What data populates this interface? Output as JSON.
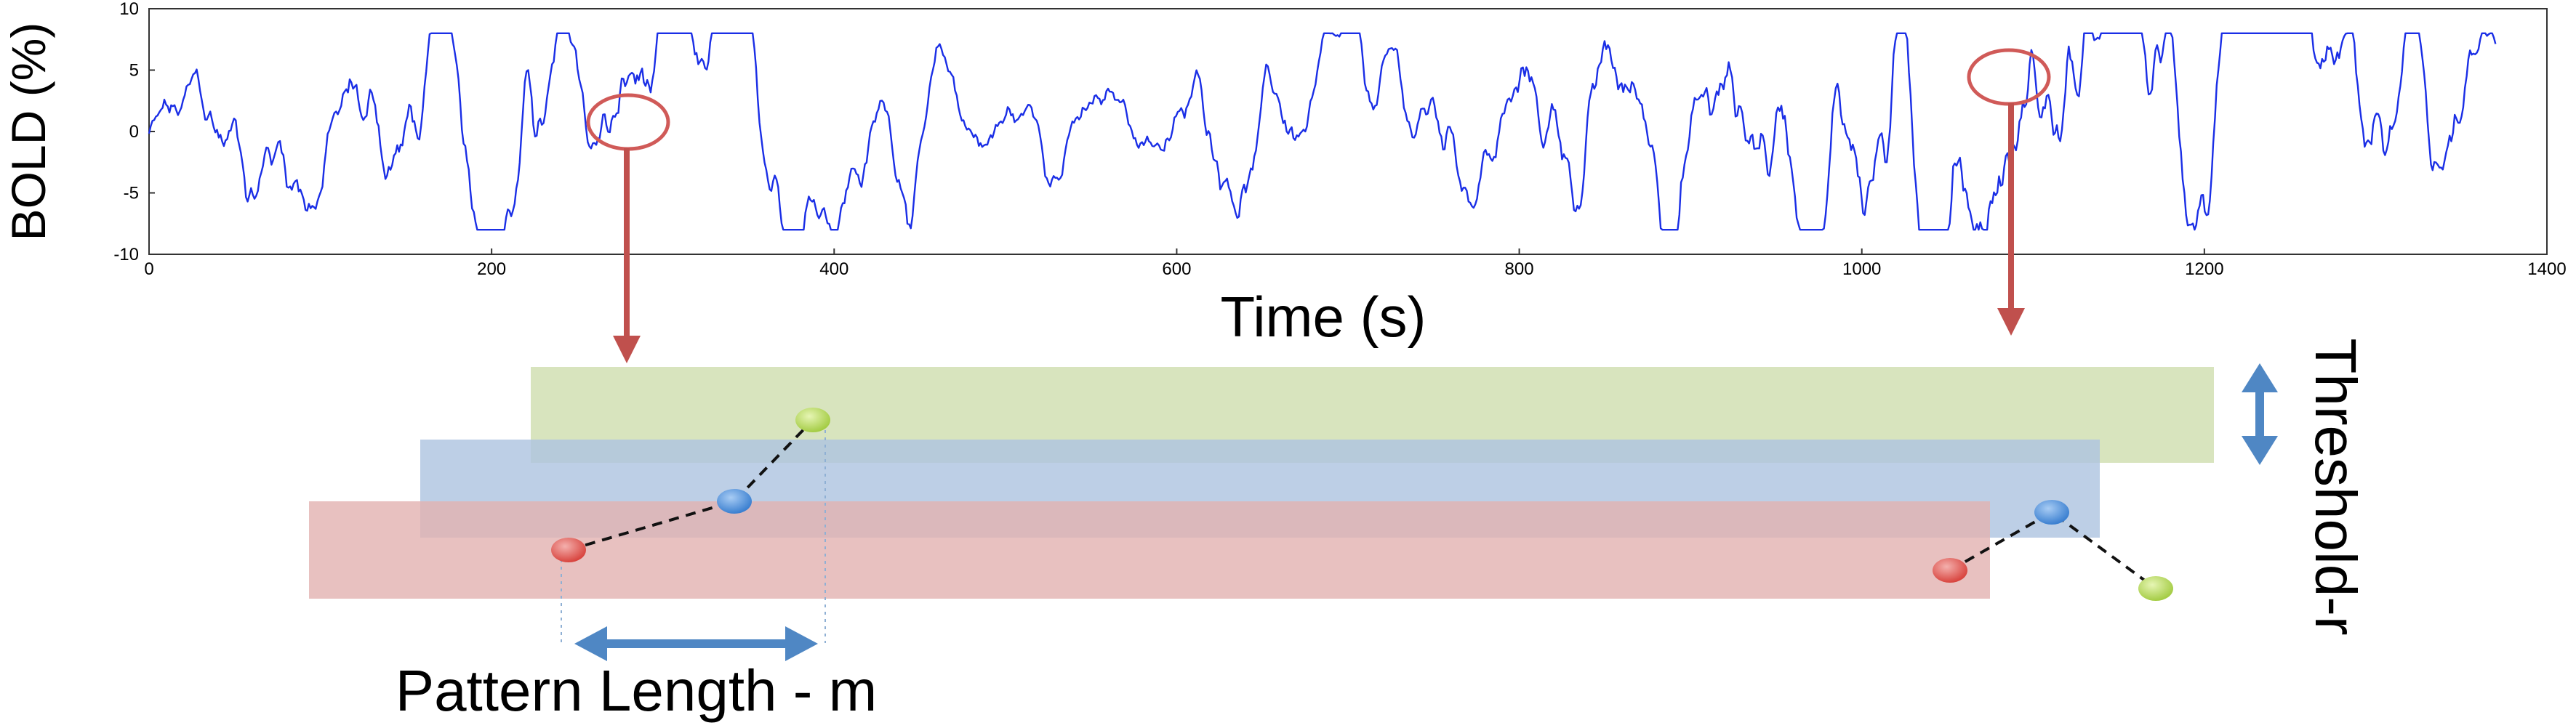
{
  "chart_data": {
    "type": "line",
    "title": "",
    "xlabel": "Time (s)",
    "ylabel": "BOLD (%)",
    "xlim": [
      0,
      1400
    ],
    "ylim": [
      -10,
      10
    ],
    "x_ticks": [
      0,
      200,
      400,
      600,
      800,
      1000,
      1200,
      1400
    ],
    "y_ticks": [
      10,
      5,
      0,
      -5,
      -10
    ],
    "grid": false,
    "series_color": "#1a2ee6",
    "n_points": 1380,
    "envelope": [
      [
        0,
        -2
      ],
      [
        40,
        -1
      ],
      [
        100,
        0
      ],
      [
        180,
        -0.5
      ],
      [
        240,
        0
      ],
      [
        270,
        0.5
      ],
      [
        290,
        2
      ],
      [
        330,
        -0.5
      ],
      [
        400,
        0
      ],
      [
        500,
        0.5
      ],
      [
        580,
        0.5
      ],
      [
        620,
        1
      ],
      [
        700,
        0
      ],
      [
        800,
        0.5
      ],
      [
        900,
        1
      ],
      [
        950,
        1.5
      ],
      [
        1000,
        2
      ],
      [
        1060,
        -1
      ],
      [
        1090,
        3
      ],
      [
        1150,
        1
      ],
      [
        1250,
        0
      ],
      [
        1290,
        -2
      ],
      [
        1370,
        0
      ]
    ],
    "annotations": [
      {
        "label": "",
        "x": 277,
        "y": 1
      },
      {
        "label": "",
        "x": 1085,
        "y": 4.5
      }
    ]
  },
  "diagram": {
    "threshold_label": "Threshold-r",
    "pattern_length_label": "Pattern Length - m",
    "colors": {
      "highlight_circle": "#d05a58",
      "arrow_red": "#c0504d",
      "arrow_blue": "#4f87c4",
      "band_green": "#d3e0b5",
      "band_blue": "#afc4e0",
      "band_red": "#e2b2b0",
      "point_red": "#e05a55",
      "point_blue": "#4b8fdd",
      "point_green": "#b6d85e"
    }
  }
}
